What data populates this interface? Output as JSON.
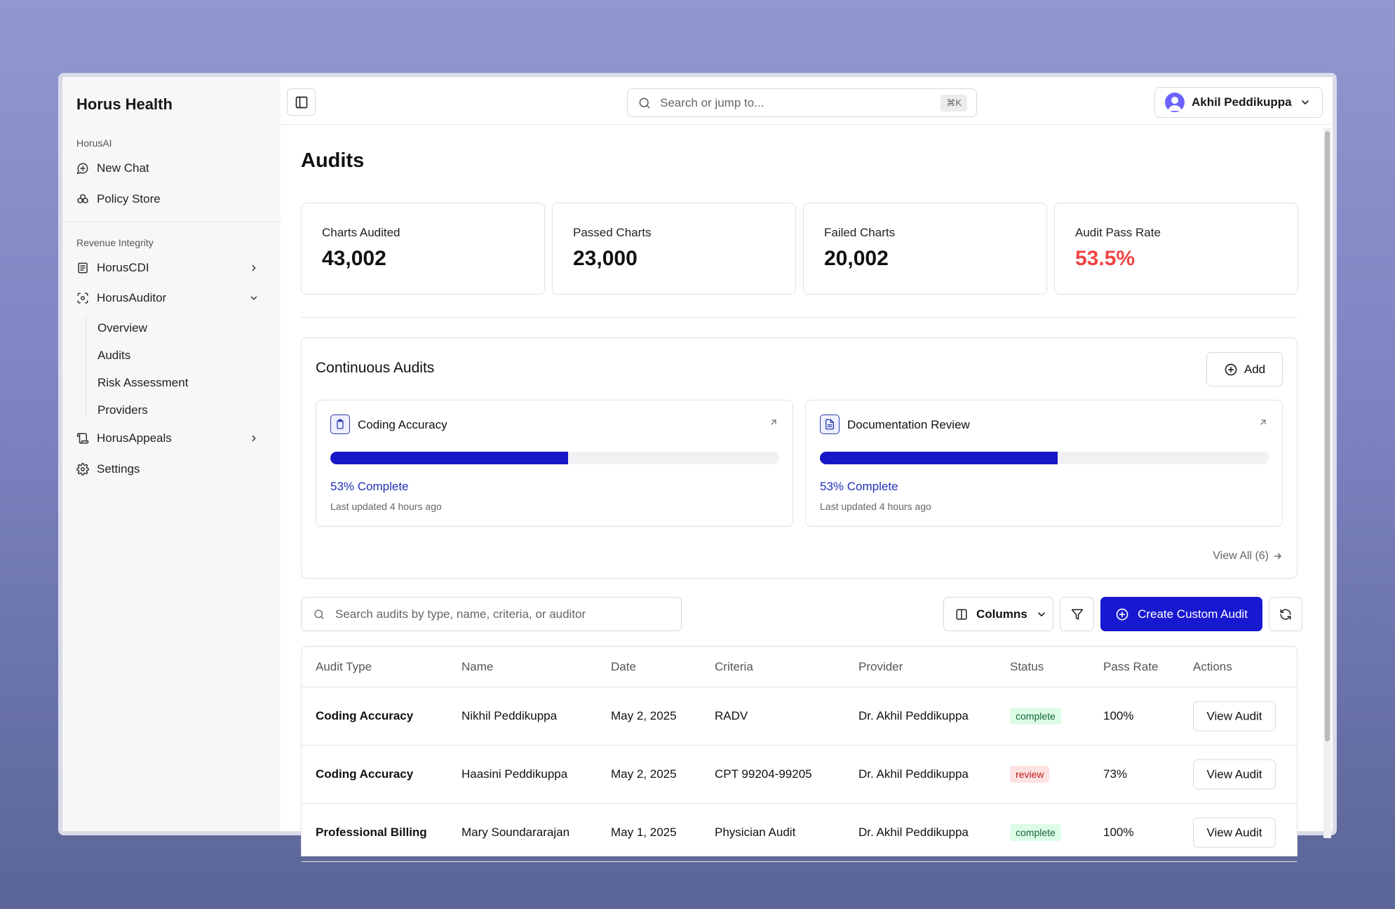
{
  "brand": "Horus Health",
  "sidebar": {
    "section1": "HorusAI",
    "new_chat": "New Chat",
    "policy_store": "Policy Store",
    "section2": "Revenue Integrity",
    "horus_cdi": "HorusCDI",
    "horus_auditor": "HorusAuditor",
    "sub_items": [
      "Overview",
      "Audits",
      "Risk Assessment",
      "Providers"
    ],
    "horus_appeals": "HorusAppeals",
    "settings": "Settings"
  },
  "topbar": {
    "search_placeholder": "Search or jump to...",
    "shortcut": "⌘K",
    "user_name": "Akhil Peddikuppa"
  },
  "page": {
    "title": "Audits"
  },
  "stats": [
    {
      "label": "Charts Audited",
      "value": "43,002"
    },
    {
      "label": "Passed Charts",
      "value": "23,000"
    },
    {
      "label": "Failed Charts",
      "value": "20,002"
    },
    {
      "label": "Audit Pass Rate",
      "value": "53.5%",
      "color": "#ef4444"
    }
  ],
  "continuous": {
    "title": "Continuous Audits",
    "add_label": "Add",
    "cards": [
      {
        "title": "Coding Accuracy",
        "progress": 0.53,
        "pct_label": "53% Complete",
        "updated": "Last updated 4 hours ago",
        "icon": "clipboard-icon"
      },
      {
        "title": "Documentation Review",
        "progress": 0.53,
        "pct_label": "53% Complete",
        "updated": "Last updated 4 hours ago",
        "icon": "document-icon"
      }
    ],
    "view_all": "View All (6)"
  },
  "toolbar": {
    "search_placeholder": "Search audits by type, name, criteria, or auditor",
    "columns_label": "Columns",
    "create_label": "Create Custom Audit"
  },
  "table": {
    "headers": [
      "Audit Type",
      "Name",
      "Date",
      "Criteria",
      "Provider",
      "Status",
      "Pass Rate",
      "Actions"
    ],
    "rows": [
      {
        "type": "Coding Accuracy",
        "name": "Nikhil Peddikuppa",
        "date": "May 2, 2025",
        "criteria": "RADV",
        "provider": "Dr. Akhil Peddikuppa",
        "status": "complete",
        "pass_rate": "100%",
        "action": "View Audit"
      },
      {
        "type": "Coding Accuracy",
        "name": "Haasini Peddikuppa",
        "date": "May 2, 2025",
        "criteria": "CPT 99204-99205",
        "provider": "Dr. Akhil Peddikuppa",
        "status": "review",
        "pass_rate": "73%",
        "action": "View Audit"
      },
      {
        "type": "Professional Billing",
        "name": "Mary Soundararajan",
        "date": "May 1, 2025",
        "criteria": "Physician Audit",
        "provider": "Dr. Akhil Peddikuppa",
        "status": "complete",
        "pass_rate": "100%",
        "action": "View Audit"
      }
    ]
  },
  "colors": {
    "accent": "#1818d0",
    "progress": "#1717c7",
    "danger": "#ef4444"
  }
}
